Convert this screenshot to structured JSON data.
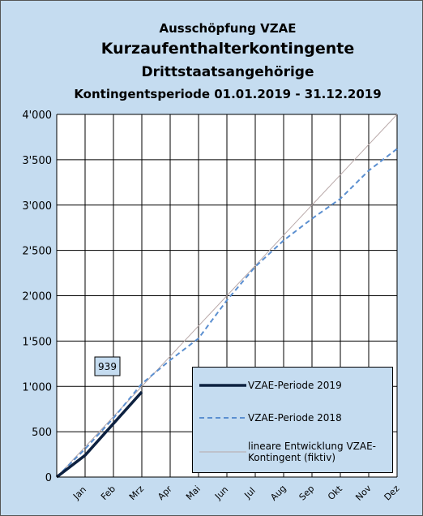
{
  "chart_data": {
    "type": "line",
    "title_lines": [
      "Ausschöpfung VZAE",
      "Kurzaufenthalterkontingente",
      "Drittstaatsangehörige",
      "Kontingentsperiode 01.01.2019 - 31.12.2019"
    ],
    "categories": [
      null,
      "Jan",
      "Feb",
      "Mrz",
      "Apr",
      "Mai",
      "Jun",
      "Jul",
      "Aug",
      "Sep",
      "Okt",
      "Nov",
      "Dez"
    ],
    "series": [
      {
        "name": "VZAE-Periode 2019",
        "color": "#0d2140",
        "linestyle": "solid",
        "width": 3.5,
        "values": [
          0,
          240,
          590,
          939,
          null,
          null,
          null,
          null,
          null,
          null,
          null,
          null,
          null
        ]
      },
      {
        "name": "VZAE-Periode 2018",
        "color": "#5b8fd0",
        "linestyle": "dashed",
        "width": 2,
        "values": [
          0,
          310,
          650,
          1030,
          1290,
          1530,
          1950,
          2320,
          2610,
          2850,
          3070,
          3380,
          3620
        ]
      },
      {
        "name": "lineare Entwicklung VZAE-Kontingent (fiktiv)",
        "color": "#b8a8a8",
        "linestyle": "solid",
        "width": 1,
        "values": [
          0,
          333,
          667,
          1000,
          1333,
          1667,
          2000,
          2333,
          2667,
          3000,
          3333,
          3667,
          4000
        ]
      }
    ],
    "ylim": [
      0,
      4000
    ],
    "yticks": [
      0,
      500,
      {
        "value": 1000,
        "label": "1'000"
      },
      {
        "value": 1500,
        "label": "1'500"
      },
      {
        "value": 2000,
        "label": "2'000"
      },
      {
        "value": 2500,
        "label": "2'500"
      },
      {
        "value": 3000,
        "label": "3'000"
      },
      {
        "value": 3500,
        "label": "3'500"
      },
      {
        "value": 4000,
        "label": "4'000"
      }
    ],
    "grid": true,
    "legend": "lower right"
  }
}
